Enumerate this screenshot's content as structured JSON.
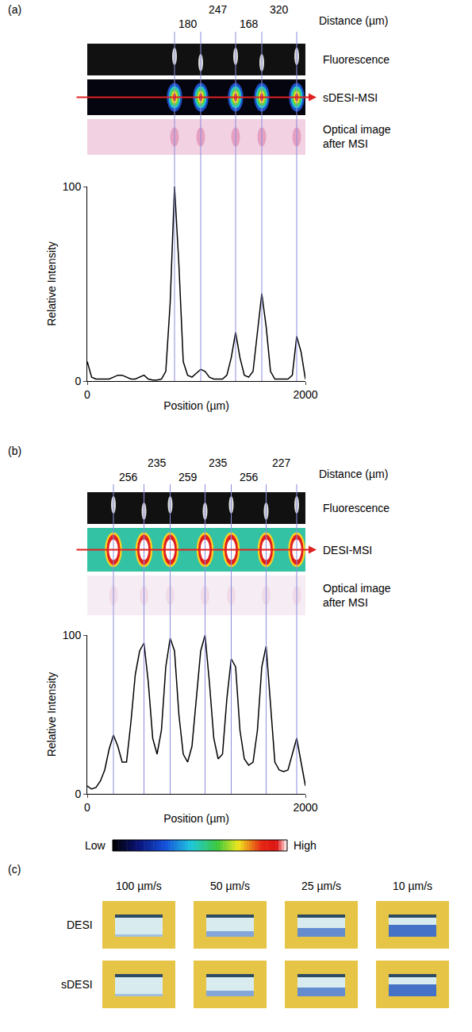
{
  "chart_data": [
    {
      "panel": "(a)",
      "type": "line",
      "x": [
        0,
        40,
        80,
        120,
        160,
        200,
        240,
        280,
        320,
        360,
        400,
        440,
        480,
        520,
        560,
        600,
        640,
        680,
        720,
        760,
        800,
        840,
        880,
        920,
        960,
        1000,
        1040,
        1080,
        1120,
        1160,
        1200,
        1240,
        1280,
        1320,
        1360,
        1400,
        1440,
        1480,
        1520,
        1560,
        1600,
        1640,
        1680,
        1720,
        1760,
        1800,
        1840,
        1880,
        1920,
        1960,
        2000
      ],
      "values": [
        10,
        2,
        1,
        1,
        1,
        1,
        2,
        3,
        3,
        2,
        1,
        1,
        2,
        3,
        1,
        0.5,
        0.5,
        1,
        5,
        40,
        100,
        60,
        10,
        3,
        2,
        4,
        6,
        5,
        2,
        1,
        1,
        1,
        3,
        12,
        25,
        12,
        3,
        2,
        5,
        25,
        45,
        28,
        5,
        1,
        1,
        1,
        1,
        3,
        23,
        15,
        1
      ],
      "color": "#000000",
      "xlim": [
        0,
        2000
      ],
      "ylim": [
        0,
        100
      ],
      "xticks": [
        0,
        2000
      ],
      "yticks": [
        0,
        100
      ],
      "x_label": "Position (µm)",
      "y_label": "Relative Intensity",
      "peak_positions": [
        800,
        1040,
        1360,
        1600,
        1920
      ],
      "distances": [
        180,
        247,
        168,
        320
      ],
      "distance_label": "Distance (µm)",
      "strips": [
        "Fluorescence",
        "sDESI-MSI",
        "Optical image after MSI"
      ]
    },
    {
      "panel": "(b)",
      "type": "line",
      "x": [
        0,
        40,
        80,
        120,
        160,
        200,
        240,
        280,
        320,
        360,
        400,
        440,
        480,
        520,
        560,
        600,
        640,
        680,
        720,
        760,
        800,
        840,
        880,
        920,
        960,
        1000,
        1040,
        1080,
        1120,
        1160,
        1200,
        1240,
        1280,
        1320,
        1360,
        1400,
        1440,
        1480,
        1520,
        1560,
        1600,
        1640,
        1680,
        1720,
        1760,
        1800,
        1840,
        1880,
        1920,
        1960,
        2000
      ],
      "values": [
        5,
        3,
        4,
        8,
        15,
        28,
        37,
        30,
        20,
        20,
        45,
        75,
        90,
        95,
        70,
        35,
        25,
        40,
        80,
        98,
        90,
        50,
        25,
        20,
        30,
        60,
        90,
        100,
        70,
        35,
        22,
        25,
        60,
        85,
        80,
        40,
        22,
        18,
        20,
        40,
        80,
        93,
        55,
        20,
        15,
        14,
        15,
        25,
        35,
        20,
        5
      ],
      "color": "#000000",
      "xlim": [
        0,
        2000
      ],
      "ylim": [
        0,
        100
      ],
      "xticks": [
        0,
        2000
      ],
      "yticks": [
        0,
        100
      ],
      "x_label": "Position (µm)",
      "y_label": "Relative Intensity",
      "peak_positions": [
        240,
        520,
        760,
        1080,
        1320,
        1640,
        1920
      ],
      "distances": [
        256,
        235,
        259,
        235,
        256,
        227
      ],
      "distance_label": "Distance (µm)",
      "strips": [
        "Fluorescence",
        "DESI-MSI",
        "Optical image after MSI"
      ]
    }
  ],
  "colorbar": {
    "low": "Low",
    "high": "High"
  },
  "panel_c": {
    "label": "(c)",
    "columns": [
      "100 µm/s",
      "50 µm/s",
      "25 µm/s",
      "10 µm/s"
    ],
    "rows": [
      "DESI",
      "sDESI"
    ]
  }
}
